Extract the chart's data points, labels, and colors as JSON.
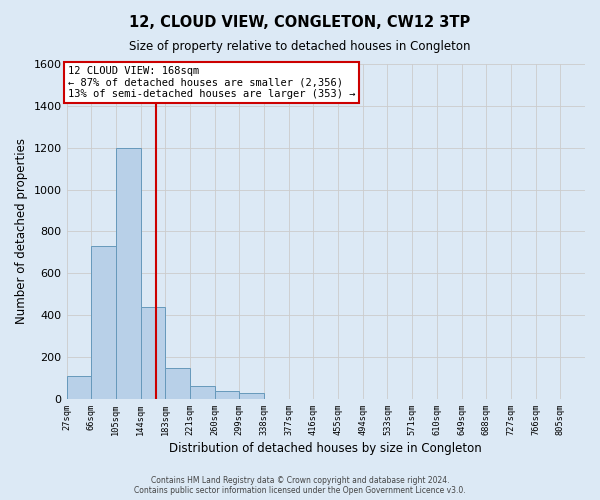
{
  "title": "12, CLOUD VIEW, CONGLETON, CW12 3TP",
  "subtitle": "Size of property relative to detached houses in Congleton",
  "xlabel": "Distribution of detached houses by size in Congleton",
  "ylabel": "Number of detached properties",
  "footer_line1": "Contains HM Land Registry data © Crown copyright and database right 2024.",
  "footer_line2": "Contains public sector information licensed under the Open Government Licence v3.0.",
  "bin_labels": [
    "27sqm",
    "66sqm",
    "105sqm",
    "144sqm",
    "183sqm",
    "221sqm",
    "260sqm",
    "299sqm",
    "338sqm",
    "377sqm",
    "416sqm",
    "455sqm",
    "494sqm",
    "533sqm",
    "571sqm",
    "610sqm",
    "649sqm",
    "688sqm",
    "727sqm",
    "766sqm",
    "805sqm"
  ],
  "bar_values": [
    110,
    730,
    1200,
    440,
    145,
    60,
    35,
    25,
    0,
    0,
    0,
    0,
    0,
    0,
    0,
    0,
    0,
    0,
    0,
    0,
    0
  ],
  "bar_color": "#b8d0e8",
  "bar_edge_color": "#6699bb",
  "property_line_x": 168,
  "property_line_color": "#cc0000",
  "annotation_title": "12 CLOUD VIEW: 168sqm",
  "annotation_line1": "← 87% of detached houses are smaller (2,356)",
  "annotation_line2": "13% of semi-detached houses are larger (353) →",
  "annotation_box_color": "#ffffff",
  "annotation_box_edge_color": "#cc0000",
  "ylim": [
    0,
    1600
  ],
  "bin_width": 39,
  "grid_color": "#cccccc",
  "background_color": "#dce9f5",
  "plot_background_color": "#dce9f5"
}
